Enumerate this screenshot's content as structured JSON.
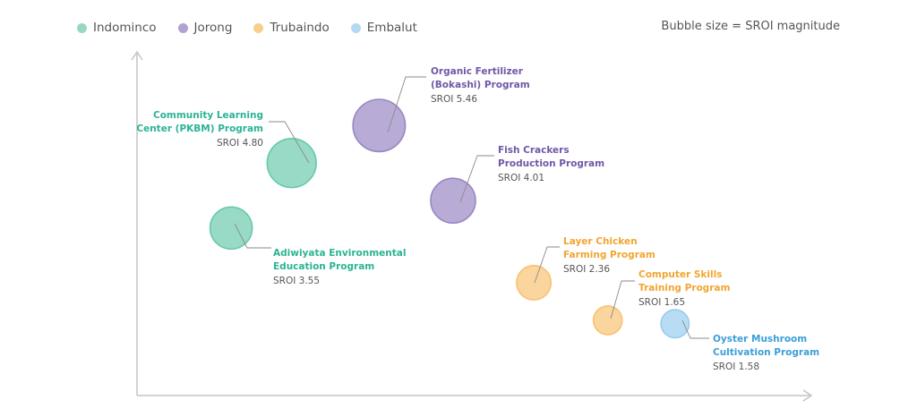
{
  "legend_note": "Bubble size = SROI magnitude",
  "chart_data": {
    "type": "scatter",
    "encoding": "bubble",
    "axes": "no ticks or labels printed",
    "grid": false,
    "legend_position": "top-left",
    "series": [
      {
        "name": "Indominco",
        "color": "#58c3a2",
        "label_color": "#2bb394",
        "points": [
          {
            "label": [
              "Community Learning",
              "Center (PKBM) Program"
            ],
            "sroi_label": "SROI 4.80",
            "sroi": 4.8,
            "x": 23,
            "y": 68
          },
          {
            "label": [
              "Adiwiyata Environmental",
              "Education Program"
            ],
            "sroi_label": "SROI 3.55",
            "sroi": 3.55,
            "x": 14,
            "y": 49
          }
        ]
      },
      {
        "name": "Jorong",
        "color": "#8d79bd",
        "label_color": "#7058a6",
        "points": [
          {
            "label": [
              "Organic Fertilizer",
              "(Bokashi) Program"
            ],
            "sroi_label": "SROI 5.46",
            "sroi": 5.46,
            "x": 36,
            "y": 79
          },
          {
            "label": [
              "Fish Crackers",
              "Production Program"
            ],
            "sroi_label": "SROI 4.01",
            "sroi": 4.01,
            "x": 47,
            "y": 57
          }
        ]
      },
      {
        "name": "Trubaindo",
        "color": "#f7bb63",
        "label_color": "#f2a531",
        "points": [
          {
            "label": [
              "Layer Chicken",
              "Farming Program"
            ],
            "sroi_label": "SROI 2.36",
            "sroi": 2.36,
            "x": 59,
            "y": 33
          },
          {
            "label": [
              "Computer Skills",
              "Training Program"
            ],
            "sroi_label": "SROI 1.65",
            "sroi": 1.65,
            "x": 70,
            "y": 22
          }
        ]
      },
      {
        "name": "Embalut",
        "color": "#8cc6ec",
        "label_color": "#3b9fd8",
        "points": [
          {
            "label": [
              "Oyster Mushroom",
              "Cultivation Program"
            ],
            "sroi_label": "SROI 1.58",
            "sroi": 1.58,
            "x": 80,
            "y": 21
          }
        ]
      }
    ]
  }
}
